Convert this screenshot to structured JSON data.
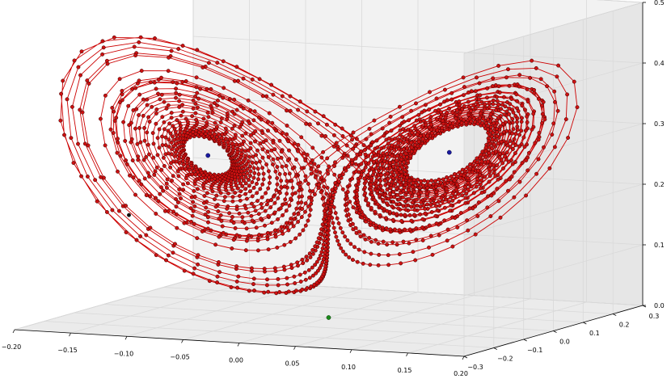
{
  "chart_data": {
    "type": "scatter",
    "projection": "3d",
    "title": "",
    "xlabel": "",
    "ylabel": "",
    "zlabel": "",
    "grid": true,
    "xlim": [
      -0.2,
      0.2
    ],
    "ylim": [
      -0.3,
      0.3
    ],
    "zlim": [
      0.0,
      0.5
    ],
    "x_ticks": [
      {
        "value": -0.2,
        "label": "−0.20"
      },
      {
        "value": -0.15,
        "label": "−0.15"
      },
      {
        "value": -0.1,
        "label": "−0.10"
      },
      {
        "value": -0.05,
        "label": "−0.05"
      },
      {
        "value": 0.0,
        "label": "0.00"
      },
      {
        "value": 0.05,
        "label": "0.05"
      },
      {
        "value": 0.1,
        "label": "0.10"
      },
      {
        "value": 0.15,
        "label": "0.15"
      },
      {
        "value": 0.2,
        "label": "0.20"
      }
    ],
    "y_ticks": [
      {
        "value": -0.3,
        "label": "−0.3"
      },
      {
        "value": -0.2,
        "label": "−0.2"
      },
      {
        "value": -0.1,
        "label": "−0.1"
      },
      {
        "value": 0.0,
        "label": "0.0"
      },
      {
        "value": 0.1,
        "label": "0.1"
      },
      {
        "value": 0.2,
        "label": "0.2"
      },
      {
        "value": 0.3,
        "label": "0.3"
      }
    ],
    "z_ticks": [
      {
        "value": 0.0,
        "label": "0.0"
      },
      {
        "value": 0.1,
        "label": "0.1"
      },
      {
        "value": 0.2,
        "label": "0.2"
      },
      {
        "value": 0.3,
        "label": "0.3"
      },
      {
        "value": 0.4,
        "label": "0.4"
      },
      {
        "value": 0.5,
        "label": "0.5"
      }
    ],
    "trajectory": {
      "kind": "lorenz",
      "sigma": 10,
      "rho": 28,
      "beta": 2.6667,
      "scale": 0.01,
      "n_points": 2300,
      "color": "#cc0000",
      "marker_color": "#cc1111",
      "marker_edge": "#330000"
    },
    "fixed_points": [
      {
        "name": "left-fixed-point",
        "x": -0.0849,
        "y": -0.0849,
        "z": 0.27,
        "color": "#1a1aa0"
      },
      {
        "name": "right-fixed-point",
        "x": 0.0849,
        "y": 0.0849,
        "z": 0.27,
        "color": "#1a1aa0"
      }
    ],
    "origin_point": {
      "x": 0.0,
      "y": 0.0,
      "z": 0.0,
      "color": "#1a8a1a"
    },
    "stray_point": {
      "x": -0.13,
      "y": -0.18,
      "z": 0.18,
      "color": "#111111"
    }
  }
}
